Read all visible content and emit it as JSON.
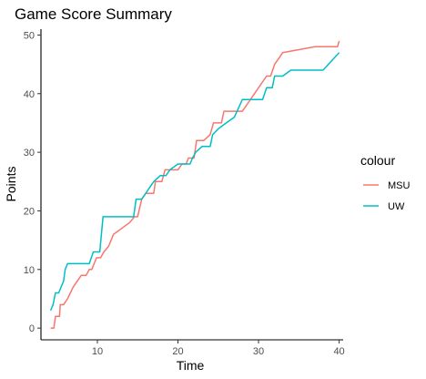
{
  "chart_data": {
    "type": "line",
    "title": "Game Score Summary",
    "xlabel": "Time",
    "ylabel": "Points",
    "xlim": [
      3,
      40.5
    ],
    "ylim": [
      -2,
      51
    ],
    "x_ticks": [
      10,
      20,
      30,
      40
    ],
    "y_ticks": [
      0,
      10,
      20,
      30,
      40,
      50
    ],
    "grid": false,
    "legend": {
      "title": "colour",
      "position": "right"
    },
    "series": [
      {
        "name": "MSU",
        "color": "#F8766D",
        "points": [
          [
            4.2,
            0
          ],
          [
            4.6,
            0
          ],
          [
            4.8,
            2
          ],
          [
            5.3,
            2
          ],
          [
            5.4,
            4
          ],
          [
            5.8,
            4
          ],
          [
            6.3,
            5
          ],
          [
            7.0,
            7
          ],
          [
            7.5,
            8
          ],
          [
            8.0,
            9
          ],
          [
            8.6,
            9
          ],
          [
            9.0,
            10
          ],
          [
            9.3,
            10
          ],
          [
            9.6,
            11
          ],
          [
            9.9,
            12
          ],
          [
            10.4,
            12
          ],
          [
            10.8,
            13
          ],
          [
            11.4,
            14
          ],
          [
            12.0,
            16
          ],
          [
            13.0,
            17
          ],
          [
            14.0,
            18
          ],
          [
            14.6,
            19
          ],
          [
            15.0,
            19
          ],
          [
            15.5,
            22
          ],
          [
            16.0,
            23
          ],
          [
            17.0,
            23
          ],
          [
            17.2,
            25
          ],
          [
            18.0,
            25
          ],
          [
            18.4,
            27
          ],
          [
            19.5,
            27
          ],
          [
            20.0,
            27
          ],
          [
            20.5,
            28
          ],
          [
            21.0,
            28
          ],
          [
            21.3,
            29
          ],
          [
            22.0,
            29
          ],
          [
            22.3,
            32
          ],
          [
            23.2,
            32
          ],
          [
            24.0,
            33
          ],
          [
            24.4,
            35
          ],
          [
            25.4,
            35
          ],
          [
            25.7,
            37
          ],
          [
            26.5,
            37
          ],
          [
            27.5,
            37
          ],
          [
            28.0,
            37
          ],
          [
            29.0,
            39
          ],
          [
            30.0,
            41
          ],
          [
            31.0,
            43
          ],
          [
            31.5,
            43
          ],
          [
            32.0,
            45
          ],
          [
            32.5,
            46
          ],
          [
            33.0,
            47
          ],
          [
            35.0,
            47.5
          ],
          [
            37.0,
            48
          ],
          [
            38.0,
            48
          ],
          [
            39.8,
            48
          ],
          [
            40.0,
            49
          ]
        ]
      },
      {
        "name": "UW",
        "color": "#00BFC4",
        "points": [
          [
            4.2,
            3
          ],
          [
            4.5,
            4
          ],
          [
            4.8,
            6
          ],
          [
            5.2,
            6
          ],
          [
            5.5,
            7
          ],
          [
            5.8,
            8
          ],
          [
            6.0,
            10
          ],
          [
            6.3,
            11
          ],
          [
            9.0,
            11
          ],
          [
            9.5,
            13
          ],
          [
            10.3,
            13
          ],
          [
            10.7,
            19
          ],
          [
            11.5,
            19
          ],
          [
            14.5,
            19
          ],
          [
            14.8,
            22
          ],
          [
            15.5,
            22
          ],
          [
            16.0,
            23
          ],
          [
            16.5,
            24
          ],
          [
            17.0,
            25
          ],
          [
            17.8,
            26
          ],
          [
            18.5,
            26
          ],
          [
            19.0,
            27
          ],
          [
            20.0,
            28
          ],
          [
            21.5,
            28
          ],
          [
            21.8,
            29
          ],
          [
            22.2,
            30
          ],
          [
            23.0,
            31
          ],
          [
            24.0,
            31
          ],
          [
            24.3,
            33
          ],
          [
            25.0,
            34
          ],
          [
            26.0,
            35
          ],
          [
            27.0,
            36
          ],
          [
            28.0,
            39
          ],
          [
            29.0,
            39
          ],
          [
            30.5,
            39
          ],
          [
            31.0,
            41
          ],
          [
            31.7,
            41
          ],
          [
            32.0,
            43
          ],
          [
            33.0,
            43
          ],
          [
            34.0,
            44
          ],
          [
            38.0,
            44
          ],
          [
            40.0,
            47
          ]
        ]
      }
    ]
  }
}
